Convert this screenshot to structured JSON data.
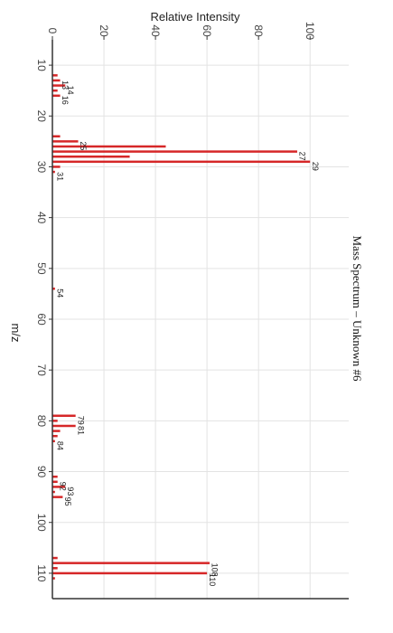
{
  "chart_data": {
    "type": "bar",
    "orientation": "horizontal",
    "title": "Mass Spectrum – Unknown #6",
    "xlabel": "m/z",
    "ylabel": "Relative Intensity",
    "xlim": [
      5,
      115
    ],
    "ylim": [
      0,
      115
    ],
    "x_ticks": [
      10,
      20,
      30,
      40,
      50,
      60,
      70,
      80,
      90,
      100,
      110
    ],
    "y_ticks": [
      0,
      20,
      40,
      60,
      80,
      100
    ],
    "grid": true,
    "bar_color": "#d62728",
    "peaks": [
      {
        "mz": 12,
        "intensity": 2,
        "label": ""
      },
      {
        "mz": 13,
        "intensity": 3,
        "label": "13"
      },
      {
        "mz": 14,
        "intensity": 5,
        "label": "14"
      },
      {
        "mz": 15,
        "intensity": 2,
        "label": ""
      },
      {
        "mz": 16,
        "intensity": 3,
        "label": "16"
      },
      {
        "mz": 24,
        "intensity": 3,
        "label": ""
      },
      {
        "mz": 25,
        "intensity": 10,
        "label": "25"
      },
      {
        "mz": 26,
        "intensity": 44,
        "label": ""
      },
      {
        "mz": 27,
        "intensity": 95,
        "label": "27"
      },
      {
        "mz": 28,
        "intensity": 30,
        "label": ""
      },
      {
        "mz": 29,
        "intensity": 100,
        "label": "29"
      },
      {
        "mz": 30,
        "intensity": 3,
        "label": ""
      },
      {
        "mz": 31,
        "intensity": 1,
        "label": "31"
      },
      {
        "mz": 54,
        "intensity": 1,
        "label": "54"
      },
      {
        "mz": 79,
        "intensity": 9,
        "label": "79"
      },
      {
        "mz": 80,
        "intensity": 2,
        "label": ""
      },
      {
        "mz": 81,
        "intensity": 9,
        "label": "81"
      },
      {
        "mz": 82,
        "intensity": 3,
        "label": ""
      },
      {
        "mz": 83,
        "intensity": 2,
        "label": ""
      },
      {
        "mz": 84,
        "intensity": 1,
        "label": "84"
      },
      {
        "mz": 91,
        "intensity": 2,
        "label": ""
      },
      {
        "mz": 92,
        "intensity": 2,
        "label": "92"
      },
      {
        "mz": 93,
        "intensity": 5,
        "label": "93"
      },
      {
        "mz": 94,
        "intensity": 1,
        "label": ""
      },
      {
        "mz": 95,
        "intensity": 4,
        "label": "95"
      },
      {
        "mz": 107,
        "intensity": 2,
        "label": ""
      },
      {
        "mz": 108,
        "intensity": 61,
        "label": "108"
      },
      {
        "mz": 109,
        "intensity": 2,
        "label": ""
      },
      {
        "mz": 110,
        "intensity": 60,
        "label": "110"
      },
      {
        "mz": 111,
        "intensity": 1,
        "label": ""
      }
    ]
  }
}
